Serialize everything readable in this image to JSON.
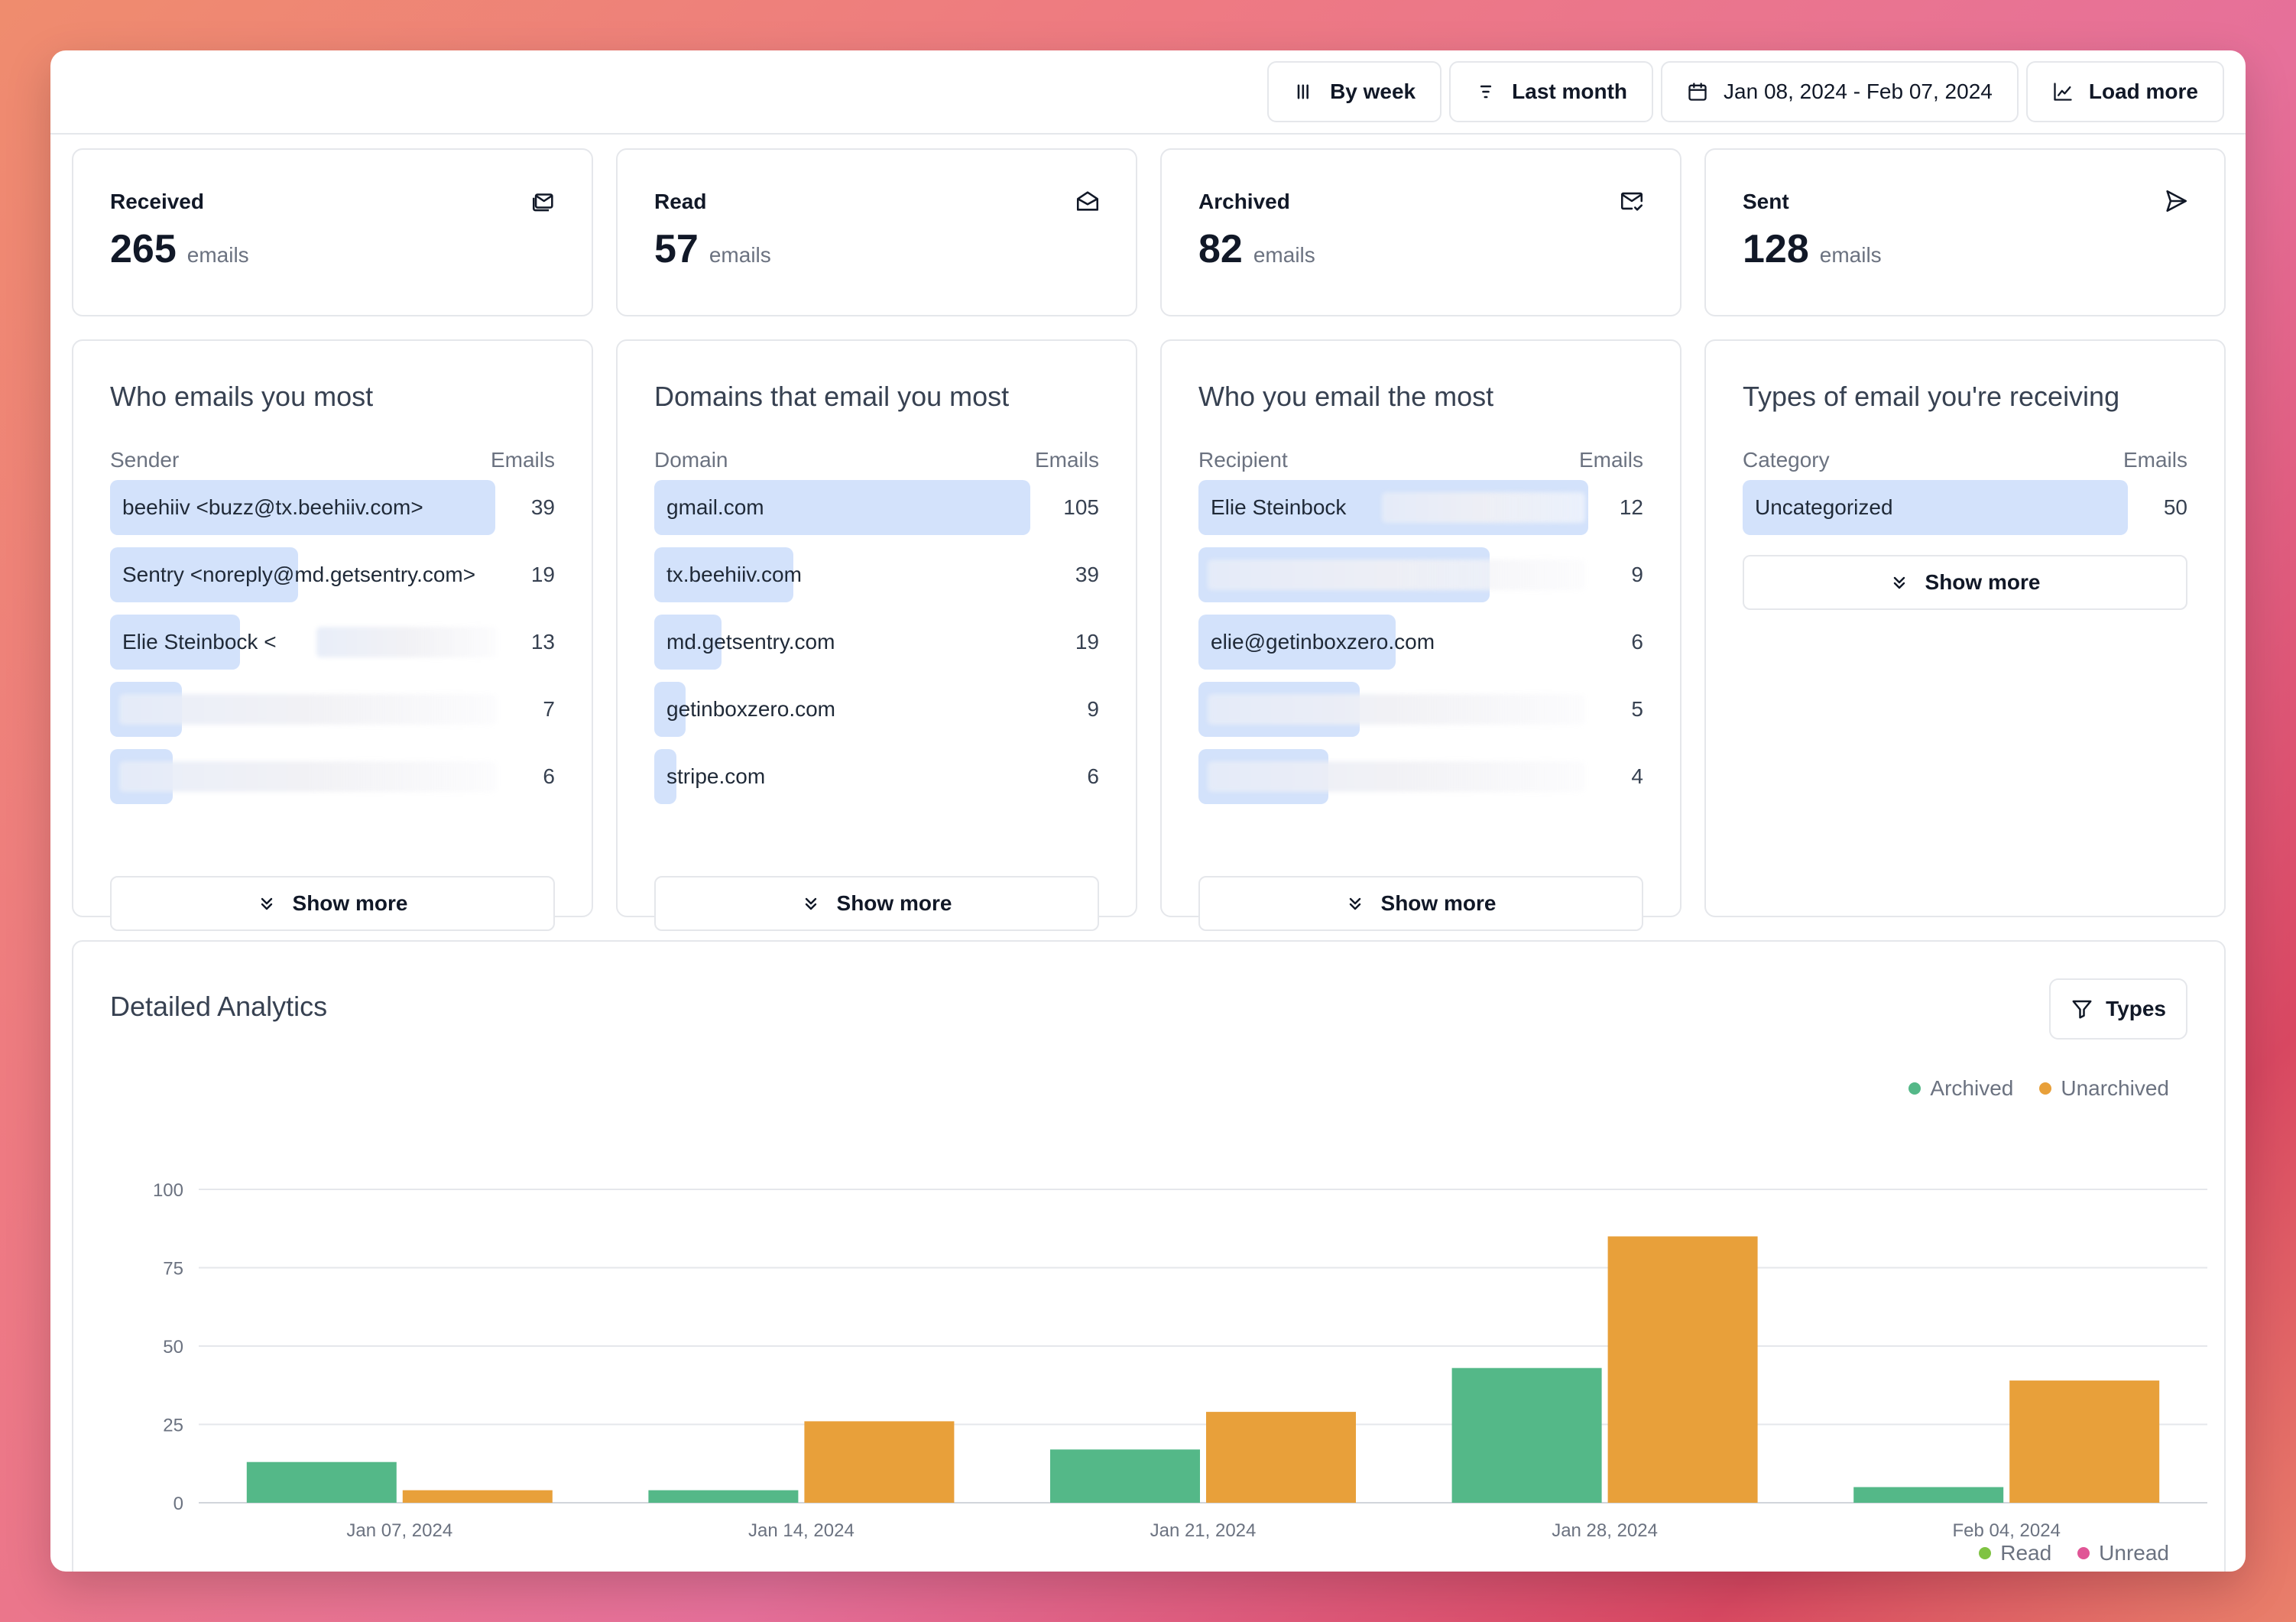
{
  "toolbar": {
    "by_week": "By week",
    "last_month": "Last month",
    "date_range": "Jan 08, 2024 - Feb 07, 2024",
    "load_more": "Load more"
  },
  "stats": [
    {
      "label": "Received",
      "value": "265",
      "unit": "emails",
      "icon": "mail-stack-icon"
    },
    {
      "label": "Read",
      "value": "57",
      "unit": "emails",
      "icon": "mail-open-icon"
    },
    {
      "label": "Archived",
      "value": "82",
      "unit": "emails",
      "icon": "mail-check-icon"
    },
    {
      "label": "Sent",
      "value": "128",
      "unit": "emails",
      "icon": "send-icon"
    }
  ],
  "lists": [
    {
      "title": "Who emails you most",
      "col1": "Sender",
      "col2": "Emails",
      "rows": [
        {
          "text": "beehiiv <buzz@tx.beehiiv.com>",
          "value": "39",
          "fraction": 0.86
        },
        {
          "text": "Sentry <noreply@md.getsentry.com>",
          "value": "19",
          "fraction": 0.42
        },
        {
          "text": "Elie Steinbock <",
          "value": "13",
          "fraction": 0.29
        },
        {
          "text": "",
          "value": "7",
          "fraction": 0.16
        },
        {
          "text": "",
          "value": "6",
          "fraction": 0.14
        }
      ],
      "show_more": "Show more"
    },
    {
      "title": "Domains that email you most",
      "col1": "Domain",
      "col2": "Emails",
      "rows": [
        {
          "text": "gmail.com",
          "value": "105",
          "fraction": 0.84
        },
        {
          "text": "tx.beehiiv.com",
          "value": "39",
          "fraction": 0.31
        },
        {
          "text": "md.getsentry.com",
          "value": "19",
          "fraction": 0.15
        },
        {
          "text": "getinboxzero.com",
          "value": "9",
          "fraction": 0.07
        },
        {
          "text": "stripe.com",
          "value": "6",
          "fraction": 0.05
        }
      ],
      "show_more": "Show more"
    },
    {
      "title": "Who you email the most",
      "col1": "Recipient",
      "col2": "Emails",
      "rows": [
        {
          "text": "Elie Steinbock",
          "value": "12",
          "fraction": 0.87
        },
        {
          "text": "",
          "value": "9",
          "fraction": 0.65
        },
        {
          "text": "elie@getinboxzero.com",
          "value": "6",
          "fraction": 0.44
        },
        {
          "text": "",
          "value": "5",
          "fraction": 0.36
        },
        {
          "text": "",
          "value": "4",
          "fraction": 0.29
        }
      ],
      "show_more": "Show more"
    },
    {
      "title": "Types of email you're receiving",
      "col1": "Category",
      "col2": "Emails",
      "rows": [
        {
          "text": "Uncategorized",
          "value": "50",
          "fraction": 0.86
        }
      ],
      "show_more": "Show more"
    }
  ],
  "analytics": {
    "title": "Detailed Analytics",
    "types_button": "Types",
    "legend_top": [
      {
        "name": "Archived",
        "color": "#54b888"
      },
      {
        "name": "Unarchived",
        "color": "#e8a03a"
      }
    ],
    "legend_bottom": [
      {
        "name": "Read",
        "color": "#7fc342"
      },
      {
        "name": "Unread",
        "color": "#e05596"
      }
    ]
  },
  "chart_data": {
    "type": "bar",
    "categories": [
      "Jan 07, 2024",
      "Jan 14, 2024",
      "Jan 21, 2024",
      "Jan 28, 2024",
      "Feb 04, 2024"
    ],
    "series": [
      {
        "name": "Archived",
        "color": "#54b888",
        "values": [
          13,
          4,
          17,
          43,
          5
        ]
      },
      {
        "name": "Unarchived",
        "color": "#e8a03a",
        "values": [
          4,
          26,
          29,
          85,
          39
        ]
      }
    ],
    "yticks": [
      0,
      25,
      50,
      75,
      100
    ],
    "ylim": [
      0,
      100
    ],
    "grid": true,
    "legend": "top-right"
  }
}
